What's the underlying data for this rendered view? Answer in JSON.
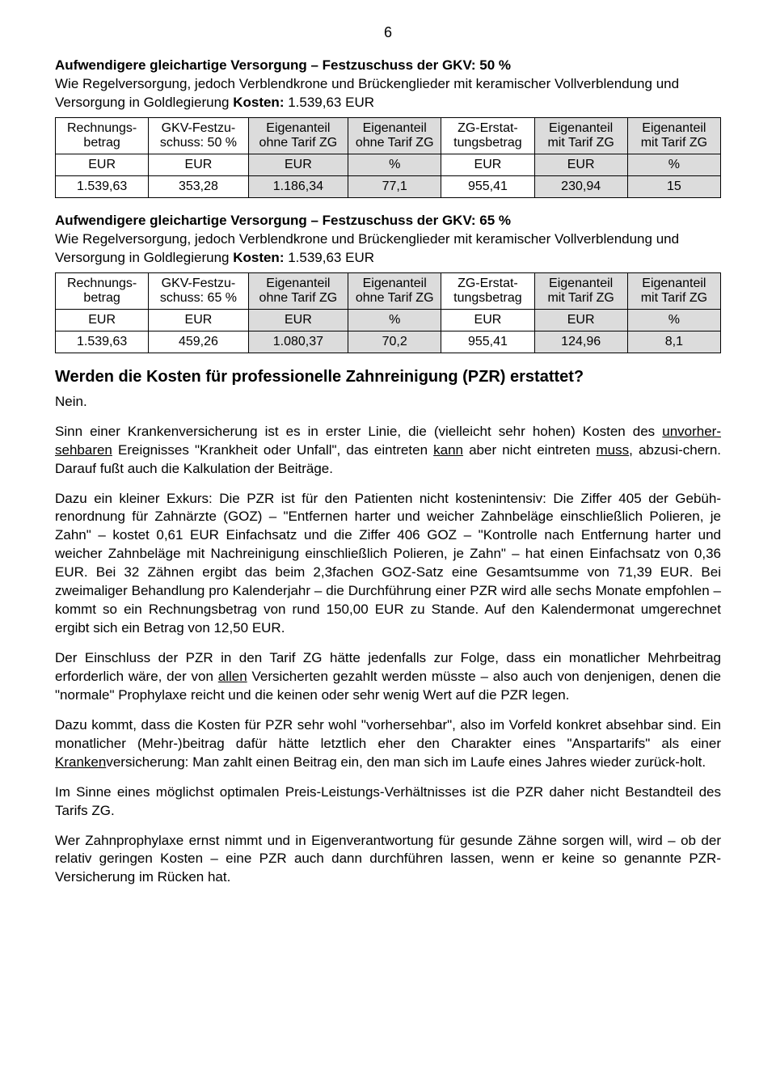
{
  "page_number": "6",
  "section1": {
    "title": "Aufwendigere gleichartige Versorgung – Festzuschuss der GKV: 50 %",
    "desc_pre": "Wie Regelversorgung, jedoch Verblendkrone und Brückenglieder mit keramischer Vollverblendung und Versorgung in Goldlegierung ",
    "kosten_label": "Kosten:",
    "kosten_value": " 1.539,63 EUR",
    "table": {
      "headers": [
        "Rechnungs-\nbetrag",
        "GKV-Festzu-\nschuss: 50 %",
        "Eigenanteil\nohne Tarif ZG",
        "Eigenanteil\nohne Tarif ZG",
        "ZG-Erstat-\ntungsbetrag",
        "Eigenanteil\nmit Tarif ZG",
        "Eigenanteil\nmit Tarif ZG"
      ],
      "units": [
        "EUR",
        "EUR",
        "EUR",
        "%",
        "EUR",
        "EUR",
        "%"
      ],
      "row": [
        "1.539,63",
        "353,28",
        "1.186,34",
        "77,1",
        "955,41",
        "230,94",
        "15"
      ],
      "shaded_cols": [
        2,
        3,
        5,
        6
      ]
    }
  },
  "section2": {
    "title": "Aufwendigere gleichartige Versorgung – Festzuschuss der GKV: 65 %",
    "desc_pre": "Wie Regelversorgung, jedoch Verblendkrone und Brückenglieder mit keramischer Vollverblendung und Versorgung in Goldlegierung ",
    "kosten_label": "Kosten:",
    "kosten_value": " 1.539,63 EUR",
    "table": {
      "headers": [
        "Rechnungs-\nbetrag",
        "GKV-Festzu-\nschuss: 65 %",
        "Eigenanteil\nohne Tarif ZG",
        "Eigenanteil\nohne Tarif ZG",
        "ZG-Erstat-\ntungsbetrag",
        "Eigenanteil\nmit Tarif ZG",
        "Eigenanteil\nmit Tarif ZG"
      ],
      "units": [
        "EUR",
        "EUR",
        "EUR",
        "%",
        "EUR",
        "EUR",
        "%"
      ],
      "row": [
        "1.539,63",
        "459,26",
        "1.080,37",
        "70,2",
        "955,41",
        "124,96",
        "8,1"
      ],
      "shaded_cols": [
        2,
        3,
        5,
        6
      ]
    }
  },
  "pzr": {
    "heading": "Werden die Kosten für professionelle Zahnreinigung (PZR) erstattet?",
    "nein": "Nein.",
    "p1_a": "Sinn einer Krankenversicherung ist es in erster Linie, die (vielleicht sehr hohen) Kosten des ",
    "p1_u1": "unvorher-sehbaren",
    "p1_b": " Ereignisses \"Krankheit oder Unfall\", das eintreten ",
    "p1_u2": "kann",
    "p1_c": " aber nicht eintreten ",
    "p1_u3": "muss",
    "p1_d": ", abzusi-chern. Darauf fußt auch die Kalkulation der Beiträge.",
    "p2": "Dazu ein kleiner Exkurs: Die PZR ist für den Patienten nicht kostenintensiv: Die Ziffer 405 der Gebüh-renordnung für Zahnärzte (GOZ) – \"Entfernen harter und weicher Zahnbeläge einschließlich Polieren, je Zahn\" – kostet 0,61 EUR Einfachsatz und die Ziffer 406 GOZ – \"Kontrolle nach Entfernung harter und weicher Zahnbeläge mit Nachreinigung einschließlich Polieren, je Zahn\" – hat einen Einfachsatz von 0,36 EUR. Bei 32 Zähnen ergibt das beim 2,3fachen GOZ-Satz eine Gesamtsumme von 71,39 EUR. Bei zweimaliger Behandlung pro Kalenderjahr – die Durchführung einer PZR wird alle sechs Monate empfohlen – kommt so ein Rechnungsbetrag von rund 150,00 EUR zu Stande. Auf den Kalendermonat umgerechnet ergibt sich ein Betrag von 12,50 EUR.",
    "p3_a": "Der Einschluss der PZR in den Tarif ZG hätte jedenfalls zur Folge, dass ein monatlicher Mehrbeitrag erforderlich wäre, der von ",
    "p3_u1": "allen",
    "p3_b": " Versicherten gezahlt werden müsste – also auch von denjenigen, denen die \"normale\" Prophylaxe reicht und die keinen oder sehr wenig Wert auf die PZR legen.",
    "p4_a": "Dazu kommt, dass die Kosten für PZR sehr wohl \"vorhersehbar\", also im Vorfeld konkret absehbar sind. Ein monatlicher (Mehr-)beitrag dafür hätte letztlich eher den Charakter eines \"Anspartarifs\" als einer ",
    "p4_u1": "Kranken",
    "p4_b": "versicherung: Man zahlt einen Beitrag ein, den man sich im Laufe eines Jahres wieder zurück-holt.",
    "p5": "Im Sinne eines möglichst optimalen Preis-Leistungs-Verhältnisses ist die PZR daher nicht Bestandteil des Tarifs ZG.",
    "p6": "Wer Zahnprophylaxe ernst nimmt und in Eigenverantwortung für gesunde Zähne sorgen will, wird – ob der relativ geringen Kosten – eine PZR auch dann durchführen lassen, wenn er keine so genannte PZR-Versicherung im Rücken hat."
  },
  "style": {
    "shaded_bg": "#dcdcdc",
    "border_color": "#000000",
    "text_color": "#000000",
    "font_family": "Arial"
  }
}
